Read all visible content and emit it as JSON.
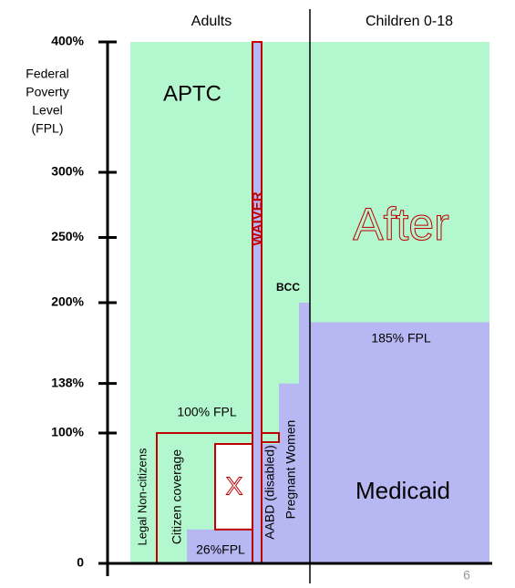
{
  "chart_data": {
    "type": "coverage",
    "column_headers": [
      "Adults",
      "Children 0-18"
    ],
    "axis_label": [
      "Federal",
      "Poverty",
      "Level",
      "(FPL)"
    ],
    "ylim": [
      0,
      400
    ],
    "yticks": [
      {
        "value": 400,
        "label": "400%"
      },
      {
        "value": 300,
        "label": "300%"
      },
      {
        "value": 250,
        "label": "250%"
      },
      {
        "value": 200,
        "label": "200%"
      },
      {
        "value": 138,
        "label": "138%"
      },
      {
        "value": 100,
        "label": "100%"
      },
      0
    ],
    "levels": {
      "aptc": 400,
      "waiver": 400,
      "children_medicaid": 185,
      "bcc": 200,
      "pregnant": 138,
      "adult_line": 100,
      "low_income": 26
    },
    "labels": {
      "aptc": "APTC",
      "waiver": "WAIVER",
      "after": "After",
      "fpl185": "185% FPL",
      "medicaid": "Medicaid",
      "fpl100": "100% FPL",
      "bcc": "BCC",
      "fpl26": "26%FPL",
      "x": "X",
      "legal": "Legal Non-citizens",
      "citizen": "Citizen coverage",
      "aabd": "AABD (disabled)",
      "pregnant": "Pregnant Women"
    },
    "page_number": "6"
  }
}
